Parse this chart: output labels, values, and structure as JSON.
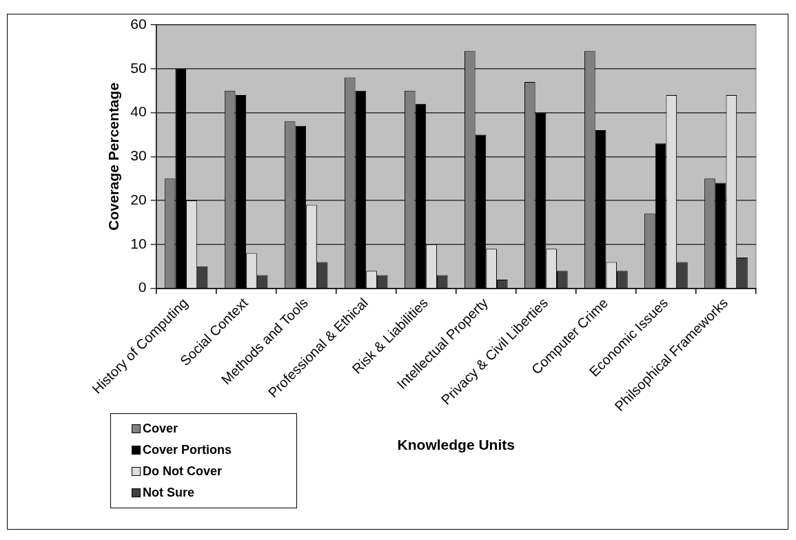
{
  "chart_data": {
    "type": "bar",
    "xlabel": "Knowledge Units",
    "ylabel": "Coverage Percentage",
    "categories": [
      "History of Computing",
      "Social Context",
      "Methods and Tools",
      "Professional & Ethical",
      "Risk & Liabilities",
      "Intellectual Property",
      "Privacy & Civil Liberties",
      "Computer Crime",
      "Economic Issues",
      "Philsophical Frameworks"
    ],
    "series": [
      {
        "name": "Cover",
        "color": "#808080",
        "values": [
          25,
          45,
          38,
          48,
          45,
          54,
          47,
          54,
          17,
          25
        ]
      },
      {
        "name": "Cover Portions",
        "color": "#000000",
        "values": [
          50,
          44,
          37,
          45,
          42,
          35,
          40,
          36,
          33,
          24
        ]
      },
      {
        "name": "Do Not Cover",
        "color": "#dddddd",
        "values": [
          20,
          8,
          19,
          4,
          10,
          9,
          9,
          6,
          44,
          44
        ]
      },
      {
        "name": "Not Sure",
        "color": "#404040",
        "values": [
          5,
          3,
          6,
          3,
          3,
          2,
          4,
          4,
          6,
          7
        ]
      }
    ],
    "ylim": [
      0,
      60
    ],
    "yticks": [
      0,
      10,
      20,
      30,
      40,
      50,
      60
    ],
    "grid": "y",
    "legend": "bottom left"
  }
}
